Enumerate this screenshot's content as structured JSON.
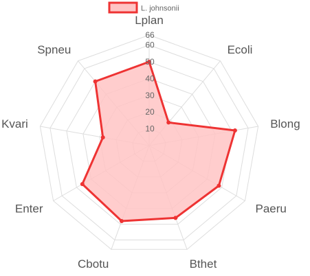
{
  "chart_data": {
    "type": "radar",
    "title": "",
    "categories": [
      "Lplan",
      "Ecoli",
      "Blong",
      "Paeru",
      "Bthet",
      "Cbotu",
      "Enter",
      "Kvari",
      "Spneu"
    ],
    "series": [
      {
        "name": "L. johnsonii",
        "values": [
          50,
          18,
          52,
          48,
          46,
          48,
          46,
          28,
          50
        ],
        "line_color": "#ee3333",
        "fill_color": "#ffc4c4"
      }
    ],
    "ticks": [
      10,
      20,
      30,
      40,
      50,
      60,
      66
    ],
    "rlim": [
      0,
      66
    ],
    "grid": true,
    "grid_shape": "polygon",
    "legend": "top"
  }
}
